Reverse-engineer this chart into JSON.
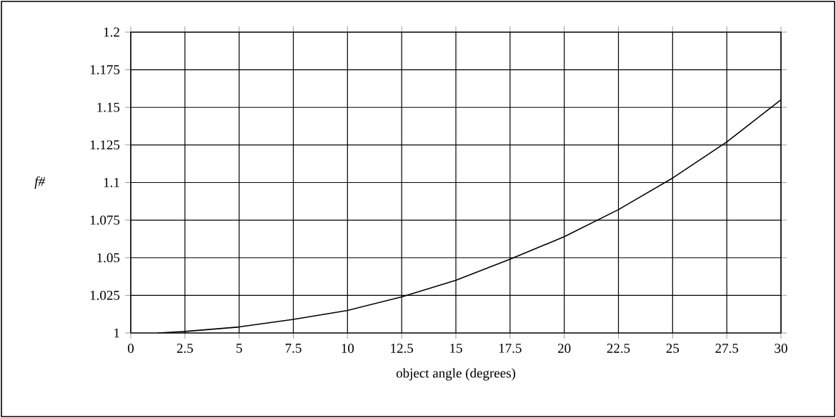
{
  "chart_data": {
    "type": "line",
    "xlabel": "object angle (degrees)",
    "ylabel": "f#",
    "x": [
      1.25,
      2.5,
      5,
      7.5,
      10,
      12.5,
      15,
      17.5,
      20,
      22.5,
      25,
      27.5,
      30
    ],
    "series": [
      {
        "color": "#000000",
        "values": [
          1.0,
          1.001,
          1.004,
          1.009,
          1.015,
          1.024,
          1.035,
          1.049,
          1.064,
          1.082,
          1.103,
          1.127,
          1.155
        ]
      }
    ],
    "xlim": [
      0,
      30
    ],
    "ylim": [
      1,
      1.2
    ],
    "xticks": [
      0,
      2.5,
      5,
      7.5,
      10,
      12.5,
      15,
      17.5,
      20,
      22.5,
      25,
      27.5,
      30
    ],
    "yticks": [
      1,
      1.025,
      1.05,
      1.075,
      1.1,
      1.125,
      1.15,
      1.175,
      1.2
    ],
    "grid": true
  }
}
